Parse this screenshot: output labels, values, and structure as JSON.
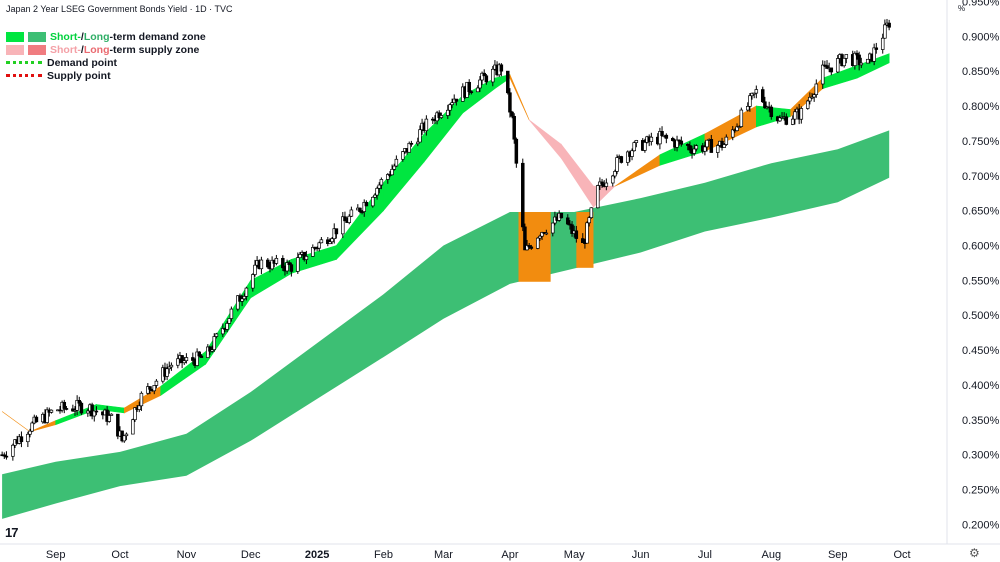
{
  "header": {
    "title": "Japan 2 Year LSEG Government Bonds Yield · 1D · TVC",
    "unit": "%"
  },
  "legend": {
    "demand_zone": {
      "short": "Short-",
      "sep": " / ",
      "long": "Long",
      "rest": "-term demand zone"
    },
    "supply_zone": {
      "short": "Short-",
      "sep": " / ",
      "long": "Long",
      "rest": "-term supply zone"
    },
    "demand_point": "Demand point",
    "supply_point": "Supply point"
  },
  "colors": {
    "short_demand": "#00e640",
    "long_demand": "#3dbf74",
    "short_supply": "#f8b4b8",
    "long_supply": "#f07c80",
    "transition": "#f28c0f",
    "candle_up": "#ffffff",
    "candle_down": "#000000",
    "demand_point": "#22d022",
    "supply_point": "#e01010"
  },
  "chart_data": {
    "type": "candlestick",
    "title": "Japan 2 Year LSEG Government Bonds Yield · 1D · TVC",
    "ylabel": "%",
    "ylim": [
      0.172,
      0.952
    ],
    "grid": false,
    "legend_position": "top-left",
    "y_ticks": [
      "0.200%",
      "0.250%",
      "0.300%",
      "0.350%",
      "0.400%",
      "0.450%",
      "0.500%",
      "0.550%",
      "0.600%",
      "0.650%",
      "0.700%",
      "0.750%",
      "0.800%",
      "0.850%",
      "0.900%",
      "0.950%"
    ],
    "x_ticks": [
      "Sep",
      "Oct",
      "Nov",
      "Dec",
      "2025",
      "Feb",
      "Mar",
      "Apr",
      "May",
      "Jun",
      "Jul",
      "Aug",
      "Sep",
      "Oct"
    ],
    "x_tick_dates": [
      "2024-09-01",
      "2024-10-01",
      "2024-11-01",
      "2024-12-01",
      "2025-01-01",
      "2025-02-01",
      "2025-03-01",
      "2025-04-01",
      "2025-05-01",
      "2025-06-01",
      "2025-07-01",
      "2025-08-01",
      "2025-09-01",
      "2025-10-01"
    ],
    "x_range": [
      "2024-08-06",
      "2025-10-22"
    ],
    "close_path": [
      [
        "2024-08-07",
        0.3
      ],
      [
        "2024-08-20",
        0.34
      ],
      [
        "2024-09-01",
        0.365
      ],
      [
        "2024-09-15",
        0.37
      ],
      [
        "2024-09-28",
        0.35
      ],
      [
        "2024-10-02",
        0.32
      ],
      [
        "2024-10-10",
        0.38
      ],
      [
        "2024-10-25",
        0.43
      ],
      [
        "2024-11-10",
        0.44
      ],
      [
        "2024-11-25",
        0.52
      ],
      [
        "2024-12-05",
        0.575
      ],
      [
        "2024-12-20",
        0.57
      ],
      [
        "2025-01-05",
        0.61
      ],
      [
        "2025-01-20",
        0.65
      ],
      [
        "2025-02-05",
        0.71
      ],
      [
        "2025-02-20",
        0.77
      ],
      [
        "2025-03-05",
        0.81
      ],
      [
        "2025-03-20",
        0.84
      ],
      [
        "2025-03-28",
        0.855
      ],
      [
        "2025-04-02",
        0.78
      ],
      [
        "2025-04-08",
        0.59
      ],
      [
        "2025-04-15",
        0.62
      ],
      [
        "2025-04-25",
        0.64
      ],
      [
        "2025-05-05",
        0.6
      ],
      [
        "2025-05-12",
        0.68
      ],
      [
        "2025-05-25",
        0.735
      ],
      [
        "2025-06-10",
        0.755
      ],
      [
        "2025-06-25",
        0.74
      ],
      [
        "2025-07-10",
        0.745
      ],
      [
        "2025-07-25",
        0.82
      ],
      [
        "2025-08-05",
        0.78
      ],
      [
        "2025-08-15",
        0.79
      ],
      [
        "2025-08-25",
        0.85
      ],
      [
        "2025-09-05",
        0.87
      ],
      [
        "2025-09-15",
        0.86
      ],
      [
        "2025-09-25",
        0.92
      ]
    ],
    "short_term_zone": [
      [
        "2024-08-07",
        0.362,
        0.362
      ],
      [
        "2024-08-20",
        0.333,
        0.333
      ],
      [
        "2024-09-01",
        0.343,
        0.349
      ],
      [
        "2024-09-20",
        0.365,
        0.372
      ],
      [
        "2024-10-03",
        0.36,
        0.367
      ],
      [
        "2024-10-20",
        0.385,
        0.398
      ],
      [
        "2024-11-10",
        0.43,
        0.448
      ],
      [
        "2024-12-01",
        0.525,
        0.55
      ],
      [
        "2024-12-20",
        0.56,
        0.58
      ],
      [
        "2025-01-10",
        0.58,
        0.6
      ],
      [
        "2025-02-01",
        0.65,
        0.69
      ],
      [
        "2025-02-20",
        0.72,
        0.76
      ],
      [
        "2025-03-10",
        0.79,
        0.815
      ],
      [
        "2025-03-25",
        0.825,
        0.84
      ],
      [
        "2025-04-01",
        0.84,
        0.845
      ],
      [
        "2025-04-10",
        0.78,
        0.78
      ],
      [
        "2025-04-25",
        0.725,
        0.745
      ],
      [
        "2025-05-10",
        0.655,
        0.685
      ],
      [
        "2025-05-20",
        0.685,
        0.685
      ],
      [
        "2025-06-10",
        0.715,
        0.73
      ],
      [
        "2025-07-01",
        0.735,
        0.76
      ],
      [
        "2025-07-25",
        0.77,
        0.8
      ],
      [
        "2025-08-10",
        0.785,
        0.795
      ],
      [
        "2025-08-25",
        0.825,
        0.84
      ],
      [
        "2025-09-10",
        0.84,
        0.858
      ],
      [
        "2025-09-25",
        0.862,
        0.875
      ]
    ],
    "long_term_zone": [
      [
        "2024-08-07",
        0.208,
        0.272
      ],
      [
        "2024-09-01",
        0.23,
        0.29
      ],
      [
        "2024-10-01",
        0.255,
        0.304
      ],
      [
        "2024-11-01",
        0.27,
        0.33
      ],
      [
        "2024-12-01",
        0.32,
        0.39
      ],
      [
        "2025-01-01",
        0.38,
        0.46
      ],
      [
        "2025-02-01",
        0.44,
        0.53
      ],
      [
        "2025-03-01",
        0.495,
        0.6
      ],
      [
        "2025-04-01",
        0.545,
        0.648
      ],
      [
        "2025-05-01",
        0.567,
        0.648
      ],
      [
        "2025-06-01",
        0.59,
        0.668
      ],
      [
        "2025-07-01",
        0.62,
        0.69
      ],
      [
        "2025-08-01",
        0.64,
        0.718
      ],
      [
        "2025-09-01",
        0.662,
        0.738
      ],
      [
        "2025-09-25",
        0.697,
        0.765
      ]
    ],
    "orange_zones": [
      [
        "2025-04-05",
        "2025-04-20",
        0.548,
        0.648
      ],
      [
        "2025-05-02",
        "2025-05-10",
        0.568,
        0.648
      ]
    ]
  }
}
